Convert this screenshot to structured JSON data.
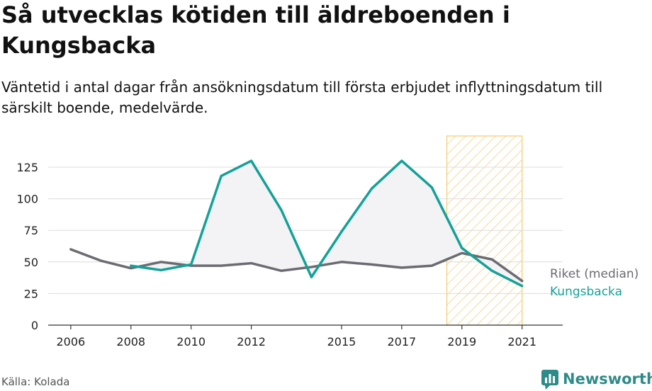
{
  "header": {
    "title": "Så utvecklas kötiden till äldreboenden i Kungsbacka",
    "subtitle": "Väntetid i antal dagar från ansökningsdatum till första erbjudet inflyttningsdatum till särskilt boende, medelvärde."
  },
  "footer": {
    "source": "Källa: Kolada",
    "brand": "Newsworthy"
  },
  "colors": {
    "kungsbacka": "#14a198",
    "riket": "#6b6b72",
    "highlight_stroke": "#f7c96a",
    "gap_fill": "#f3f3f5"
  },
  "chart_data": {
    "type": "line",
    "x": [
      2006,
      2007,
      2008,
      2009,
      2010,
      2011,
      2012,
      2013,
      2014,
      2015,
      2016,
      2017,
      2018,
      2019,
      2020,
      2021
    ],
    "x_tick_labels": [
      "2006",
      "2008",
      "2010",
      "2012",
      "2015",
      "2017",
      "2019",
      "2021"
    ],
    "y_tick_labels": [
      "0",
      "25",
      "50",
      "75",
      "100",
      "125"
    ],
    "ylim": [
      0,
      125
    ],
    "grid": true,
    "highlight_range": [
      2018.5,
      2021
    ],
    "series": [
      {
        "name": "Riket (median)",
        "values": [
          60,
          51,
          45,
          50,
          47,
          47,
          49,
          43,
          46,
          50,
          48,
          45.5,
          47,
          57,
          52,
          35
        ]
      },
      {
        "name": "Kungsbacka",
        "values": [
          null,
          null,
          47,
          43.5,
          48,
          118,
          130,
          91,
          38,
          74,
          108,
          130,
          109,
          61,
          43,
          31
        ]
      }
    ]
  }
}
